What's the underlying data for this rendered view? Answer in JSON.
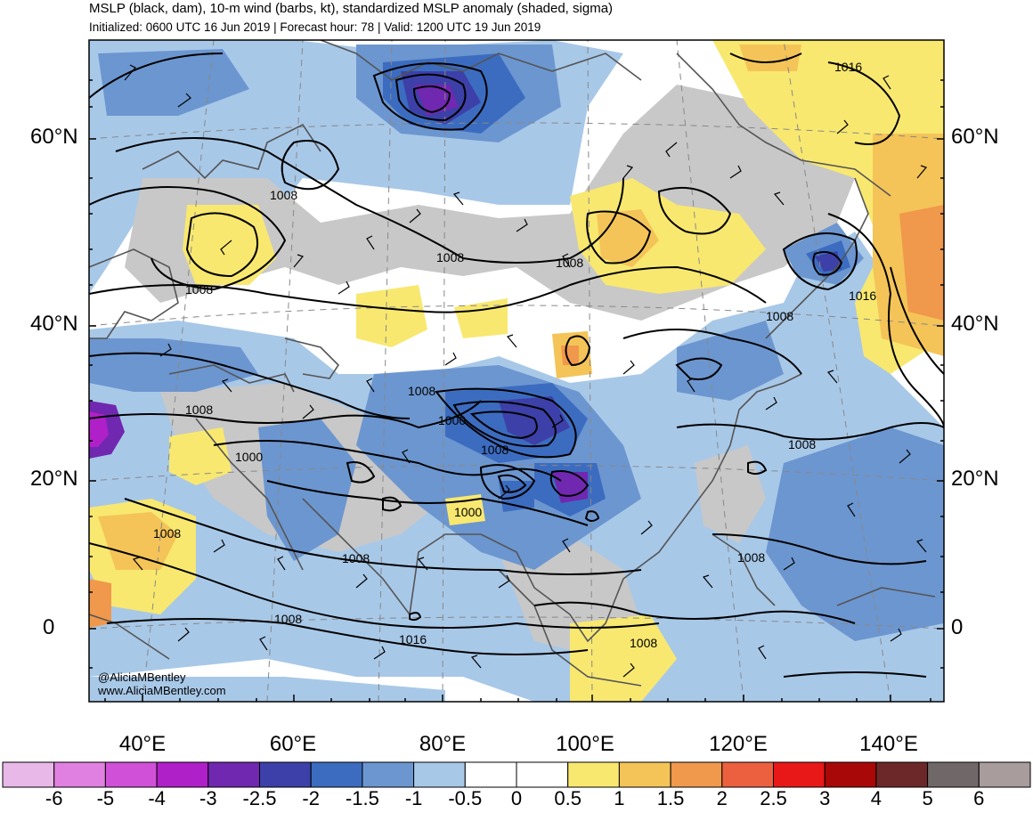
{
  "header": {
    "title": "MSLP (black, dam), 10-m wind (barbs, kt), standardized MSLP anomaly (shaded, sigma)",
    "subtitle": "Initialized: 0600 UTC 16 Jun 2019 | Forecast hour: 78 | Valid: 1200 UTC 19 Jun 2019"
  },
  "map": {
    "lat_labels": [
      "60°N",
      "40°N",
      "20°N",
      "0"
    ],
    "lon_labels": [
      "40°E",
      "60°E",
      "80°E",
      "100°E",
      "120°E",
      "140°E"
    ],
    "contour_labels": [
      "1016",
      "1008",
      "1008",
      "1008",
      "1008",
      "1016",
      "1008",
      "1008",
      "1000",
      "1008",
      "1000",
      "1008",
      "1000",
      "1008",
      "1008",
      "1008",
      "1008",
      "1008",
      "1016",
      "1008"
    ],
    "credit_handle": "@AliciaMBentley",
    "credit_url": "www.AliciaMBentley.com"
  },
  "colorbar": {
    "colors": [
      "#e8b8e8",
      "#e080e0",
      "#d050d8",
      "#b020c8",
      "#7028b0",
      "#3c40a8",
      "#3c6cc0",
      "#6c96d0",
      "#a8c8e8",
      "#ffffff",
      "#ffffff",
      "#f8e870",
      "#f4c458",
      "#f0984c",
      "#ec6040",
      "#e81818",
      "#a80808",
      "#6c2828",
      "#706868",
      "#a89c9c"
    ],
    "labels": [
      "-6",
      "-5",
      "-4",
      "-3",
      "-2.5",
      "-2",
      "-1.5",
      "-1",
      "-0.5",
      "0",
      "0.5",
      "1",
      "1.5",
      "2",
      "2.5",
      "3",
      "4",
      "5",
      "6"
    ]
  }
}
